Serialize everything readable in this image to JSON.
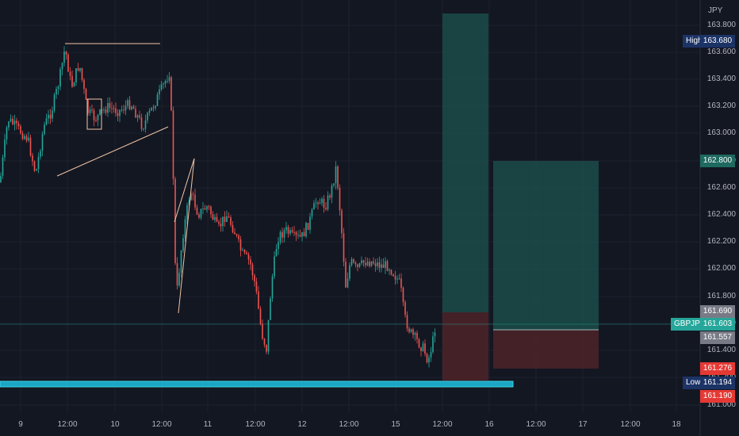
{
  "currency": "JPY",
  "price_axis": [
    "163.800",
    "163.600",
    "163.400",
    "163.200",
    "163.000",
    "162.800",
    "162.600",
    "162.400",
    "162.200",
    "162.000",
    "161.800",
    "161.600",
    "161.400",
    "161.200",
    "161.000"
  ],
  "time_axis": [
    "9",
    "12:00",
    "10",
    "12:00",
    "11",
    "12:00",
    "12",
    "12:00",
    "15",
    "12:00",
    "16",
    "12:00",
    "17",
    "12:00",
    "18"
  ],
  "tags": {
    "high_label": "High",
    "high_value": "163.680",
    "tp_value": "162.800",
    "entry1_value": "161.690",
    "symbol_label": "GBPJPY",
    "symbol_value": "161.603",
    "entry2_value": "161.557",
    "stop_value": "161.276",
    "low_label": "Low",
    "low_value": "161.194",
    "stop2_value": "161.190"
  },
  "colors": {
    "background": "#131722",
    "bull": "#26a69a",
    "bear": "#ef5350",
    "profit_zone": "#1e4d4a",
    "loss_zone": "#4a2228",
    "horizontal_line": "#22b7d1",
    "drawing": "#f0c4a4"
  }
}
